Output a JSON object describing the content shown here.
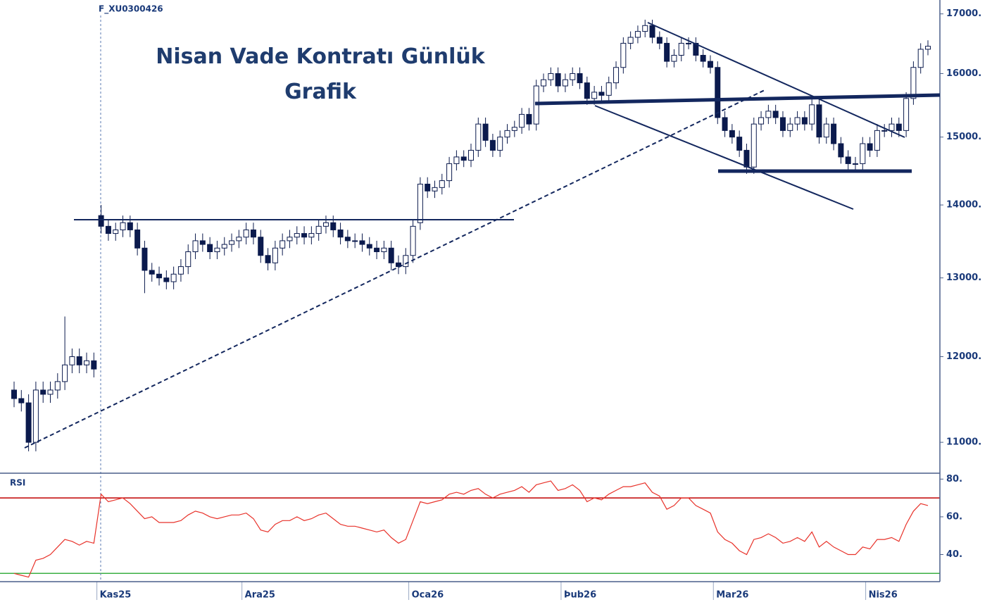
{
  "chart_data": {
    "type": "candlestick",
    "title": "Nisan Vade Kontratı Günlük Grafik",
    "subtitle": "F_XU0300426",
    "categories": [
      null,
      null,
      null,
      null,
      null,
      null,
      null,
      null,
      null,
      null,
      null,
      null,
      "Kas25",
      null,
      null,
      null,
      null,
      null,
      null,
      null,
      null,
      null,
      null,
      null,
      null,
      null,
      null,
      null,
      null,
      null,
      null,
      null,
      "Ara25",
      null,
      null,
      null,
      null,
      null,
      null,
      null,
      null,
      null,
      null,
      null,
      null,
      null,
      null,
      null,
      null,
      null,
      null,
      null,
      null,
      null,
      null,
      "Oca26",
      null,
      null,
      null,
      null,
      null,
      null,
      null,
      null,
      null,
      null,
      null,
      null,
      null,
      null,
      null,
      null,
      null,
      null,
      null,
      null,
      "Þub26",
      null,
      null,
      null,
      null,
      null,
      null,
      null,
      null,
      null,
      null,
      null,
      null,
      null,
      null,
      null,
      null,
      null,
      null,
      null,
      null,
      "Mar26",
      null,
      null,
      null,
      null,
      null,
      null,
      null,
      null,
      null,
      null,
      null,
      null,
      null,
      null,
      null,
      null,
      null,
      null,
      null,
      null,
      "Nis26",
      null,
      null,
      null,
      null,
      null,
      null,
      null,
      null
    ],
    "open": [
      11600,
      11500,
      11450,
      11000,
      11600,
      11550,
      11600,
      11700,
      11900,
      12000,
      11900,
      11950,
      13850,
      13700,
      13600,
      13650,
      13750,
      13650,
      13400,
      13100,
      13050,
      13000,
      12950,
      13050,
      13150,
      13350,
      13500,
      13450,
      13350,
      13400,
      13450,
      13500,
      13550,
      13650,
      13550,
      13300,
      13200,
      13400,
      13500,
      13550,
      13600,
      13550,
      13600,
      13700,
      13750,
      13650,
      13550,
      13500,
      13500,
      13450,
      13400,
      13350,
      13400,
      13200,
      13150,
      13300,
      13750,
      14300,
      14200,
      14250,
      14350,
      14600,
      14700,
      14650,
      14800,
      15200,
      14950,
      14800,
      15000,
      15100,
      15150,
      15350,
      15200,
      15800,
      15900,
      16000,
      15800,
      15900,
      16000,
      15850,
      15600,
      15700,
      15650,
      15850,
      16100,
      16500,
      16600,
      16700,
      16800,
      16600,
      16500,
      16200,
      16300,
      16500,
      16500,
      16300,
      16200,
      16100,
      15300,
      15100,
      15000,
      14800,
      14550,
      15200,
      15300,
      15400,
      15300,
      15100,
      15200,
      15300,
      15200,
      15500,
      15000,
      15200,
      14900,
      14700,
      14600,
      14600,
      14900,
      14800,
      15100,
      15100,
      15200,
      15100,
      15600,
      16100,
      16400
    ],
    "high": [
      11700,
      11600,
      11550,
      11700,
      11700,
      11700,
      11800,
      12500,
      12100,
      12100,
      12050,
      12050,
      14000,
      13800,
      13750,
      13850,
      13850,
      13750,
      13500,
      13200,
      13150,
      13100,
      13150,
      13250,
      13450,
      13600,
      13600,
      13550,
      13500,
      13550,
      13600,
      13650,
      13750,
      13750,
      13650,
      13400,
      13500,
      13600,
      13650,
      13700,
      13700,
      13700,
      13800,
      13850,
      13850,
      13750,
      13650,
      13600,
      13600,
      13550,
      13500,
      13500,
      13500,
      13300,
      13400,
      13800,
      14400,
      14400,
      14350,
      14450,
      14700,
      14800,
      14800,
      14900,
      15300,
      15300,
      15050,
      15100,
      15200,
      15250,
      15450,
      15450,
      15900,
      16000,
      16100,
      16100,
      16000,
      16100,
      16100,
      15950,
      15800,
      15800,
      15950,
      16200,
      16600,
      16700,
      16800,
      16900,
      16900,
      16700,
      16600,
      16400,
      16600,
      16600,
      16600,
      16400,
      16300,
      16200,
      15400,
      15200,
      15100,
      14900,
      15300,
      15400,
      15500,
      15500,
      15400,
      15300,
      15400,
      15400,
      15600,
      15600,
      15300,
      15300,
      15000,
      14800,
      14700,
      15000,
      15000,
      15200,
      15200,
      15300,
      15300,
      15700,
      16200,
      16500,
      16550
    ],
    "low": [
      11400,
      11350,
      10900,
      10900,
      11450,
      11450,
      11500,
      11600,
      11800,
      11800,
      11800,
      11750,
      13600,
      13500,
      13500,
      13550,
      13550,
      13300,
      12800,
      12950,
      12900,
      12850,
      12850,
      12950,
      13050,
      13250,
      13350,
      13250,
      13250,
      13300,
      13350,
      13400,
      13450,
      13450,
      13200,
      13100,
      13100,
      13300,
      13400,
      13450,
      13450,
      13450,
      13500,
      13600,
      13550,
      13450,
      13400,
      13400,
      13350,
      13300,
      13250,
      13250,
      13100,
      13050,
      13050,
      13200,
      13650,
      14100,
      14100,
      14150,
      14250,
      14500,
      14550,
      14550,
      14700,
      14850,
      14700,
      14700,
      14900,
      15000,
      15050,
      15100,
      15100,
      15700,
      15800,
      15700,
      15700,
      15800,
      15750,
      15500,
      15500,
      15550,
      15550,
      15750,
      16000,
      16400,
      16500,
      16600,
      16500,
      16400,
      16100,
      16100,
      16200,
      16400,
      16200,
      16100,
      16000,
      15200,
      15000,
      14900,
      14700,
      14450,
      14450,
      15100,
      15200,
      15200,
      15000,
      15000,
      15100,
      15100,
      15100,
      14900,
      14900,
      14800,
      14600,
      14500,
      14500,
      14500,
      14700,
      14700,
      15000,
      15000,
      15000,
      15000,
      15500,
      16000,
      16300
    ],
    "close": [
      11500,
      11450,
      11000,
      11600,
      11550,
      11600,
      11700,
      11900,
      12000,
      11900,
      11950,
      11850,
      13700,
      13600,
      13650,
      13750,
      13650,
      13400,
      13100,
      13050,
      13000,
      12950,
      13050,
      13150,
      13350,
      13500,
      13450,
      13350,
      13400,
      13450,
      13500,
      13550,
      13650,
      13550,
      13300,
      13200,
      13400,
      13500,
      13550,
      13600,
      13550,
      13600,
      13700,
      13750,
      13650,
      13550,
      13500,
      13500,
      13450,
      13400,
      13350,
      13400,
      13200,
      13150,
      13300,
      13700,
      14300,
      14200,
      14250,
      14350,
      14600,
      14700,
      14650,
      14800,
      15200,
      14950,
      14800,
      15000,
      15100,
      15150,
      15350,
      15200,
      15800,
      15900,
      16000,
      15800,
      15900,
      16000,
      15850,
      15600,
      15700,
      15650,
      15850,
      16100,
      16500,
      16600,
      16700,
      16800,
      16600,
      16500,
      16200,
      16300,
      16500,
      16500,
      16300,
      16200,
      16100,
      15300,
      15100,
      15000,
      14800,
      14550,
      15200,
      15300,
      15400,
      15300,
      15100,
      15200,
      15300,
      15200,
      15500,
      15000,
      15200,
      14900,
      14700,
      14600,
      14600,
      14900,
      14800,
      15100,
      15100,
      15200,
      15100,
      15600,
      16100,
      16400,
      16450
    ],
    "up_color": "#ffffff",
    "down_color": "#0b1a4d",
    "ylim": [
      10660,
      17180
    ],
    "log": true,
    "yticks": [
      {
        "value": 11000,
        "label": "11000."
      },
      {
        "value": 12000,
        "label": "12000."
      },
      {
        "value": 13000,
        "label": "13000."
      },
      {
        "value": 14000,
        "label": "14000."
      },
      {
        "value": 15000,
        "label": "15000."
      },
      {
        "value": 16000,
        "label": "16000."
      },
      {
        "value": 17000,
        "label": "17000."
      }
    ],
    "rsi": {
      "label": "RSI",
      "color": "#e8322a",
      "values": [
        30,
        29,
        28,
        37,
        38,
        40,
        44,
        48,
        47,
        45,
        47,
        46,
        72,
        68,
        69,
        70,
        67,
        63,
        59,
        60,
        57,
        57,
        57,
        58,
        61,
        63,
        62,
        60,
        59,
        60,
        61,
        61,
        62,
        59,
        53,
        52,
        56,
        58,
        58,
        60,
        58,
        59,
        61,
        62,
        59,
        56,
        55,
        55,
        54,
        53,
        52,
        53,
        49,
        46,
        48,
        58,
        68,
        67,
        68,
        69,
        72,
        73,
        72,
        74,
        75,
        72,
        70,
        72,
        73,
        74,
        76,
        73,
        77,
        78,
        79,
        74,
        75,
        77,
        74,
        68,
        70,
        69,
        72,
        74,
        76,
        76,
        77,
        78,
        73,
        71,
        64,
        66,
        70,
        70,
        66,
        64,
        62,
        52,
        48,
        46,
        42,
        40,
        48,
        49,
        51,
        49,
        46,
        47,
        49,
        47,
        52,
        44,
        47,
        44,
        42,
        40,
        40,
        44,
        43,
        48,
        48,
        49,
        47,
        56,
        63,
        67,
        66
      ],
      "ylim": [
        26,
        82
      ],
      "yticks": [
        {
          "value": 40,
          "label": "40."
        },
        {
          "value": 60,
          "label": "60."
        },
        {
          "value": 80,
          "label": "80."
        }
      ],
      "levels": [
        {
          "value": 70,
          "color": "#c00000"
        },
        {
          "value": 30,
          "color": "#3cb043"
        }
      ]
    }
  }
}
